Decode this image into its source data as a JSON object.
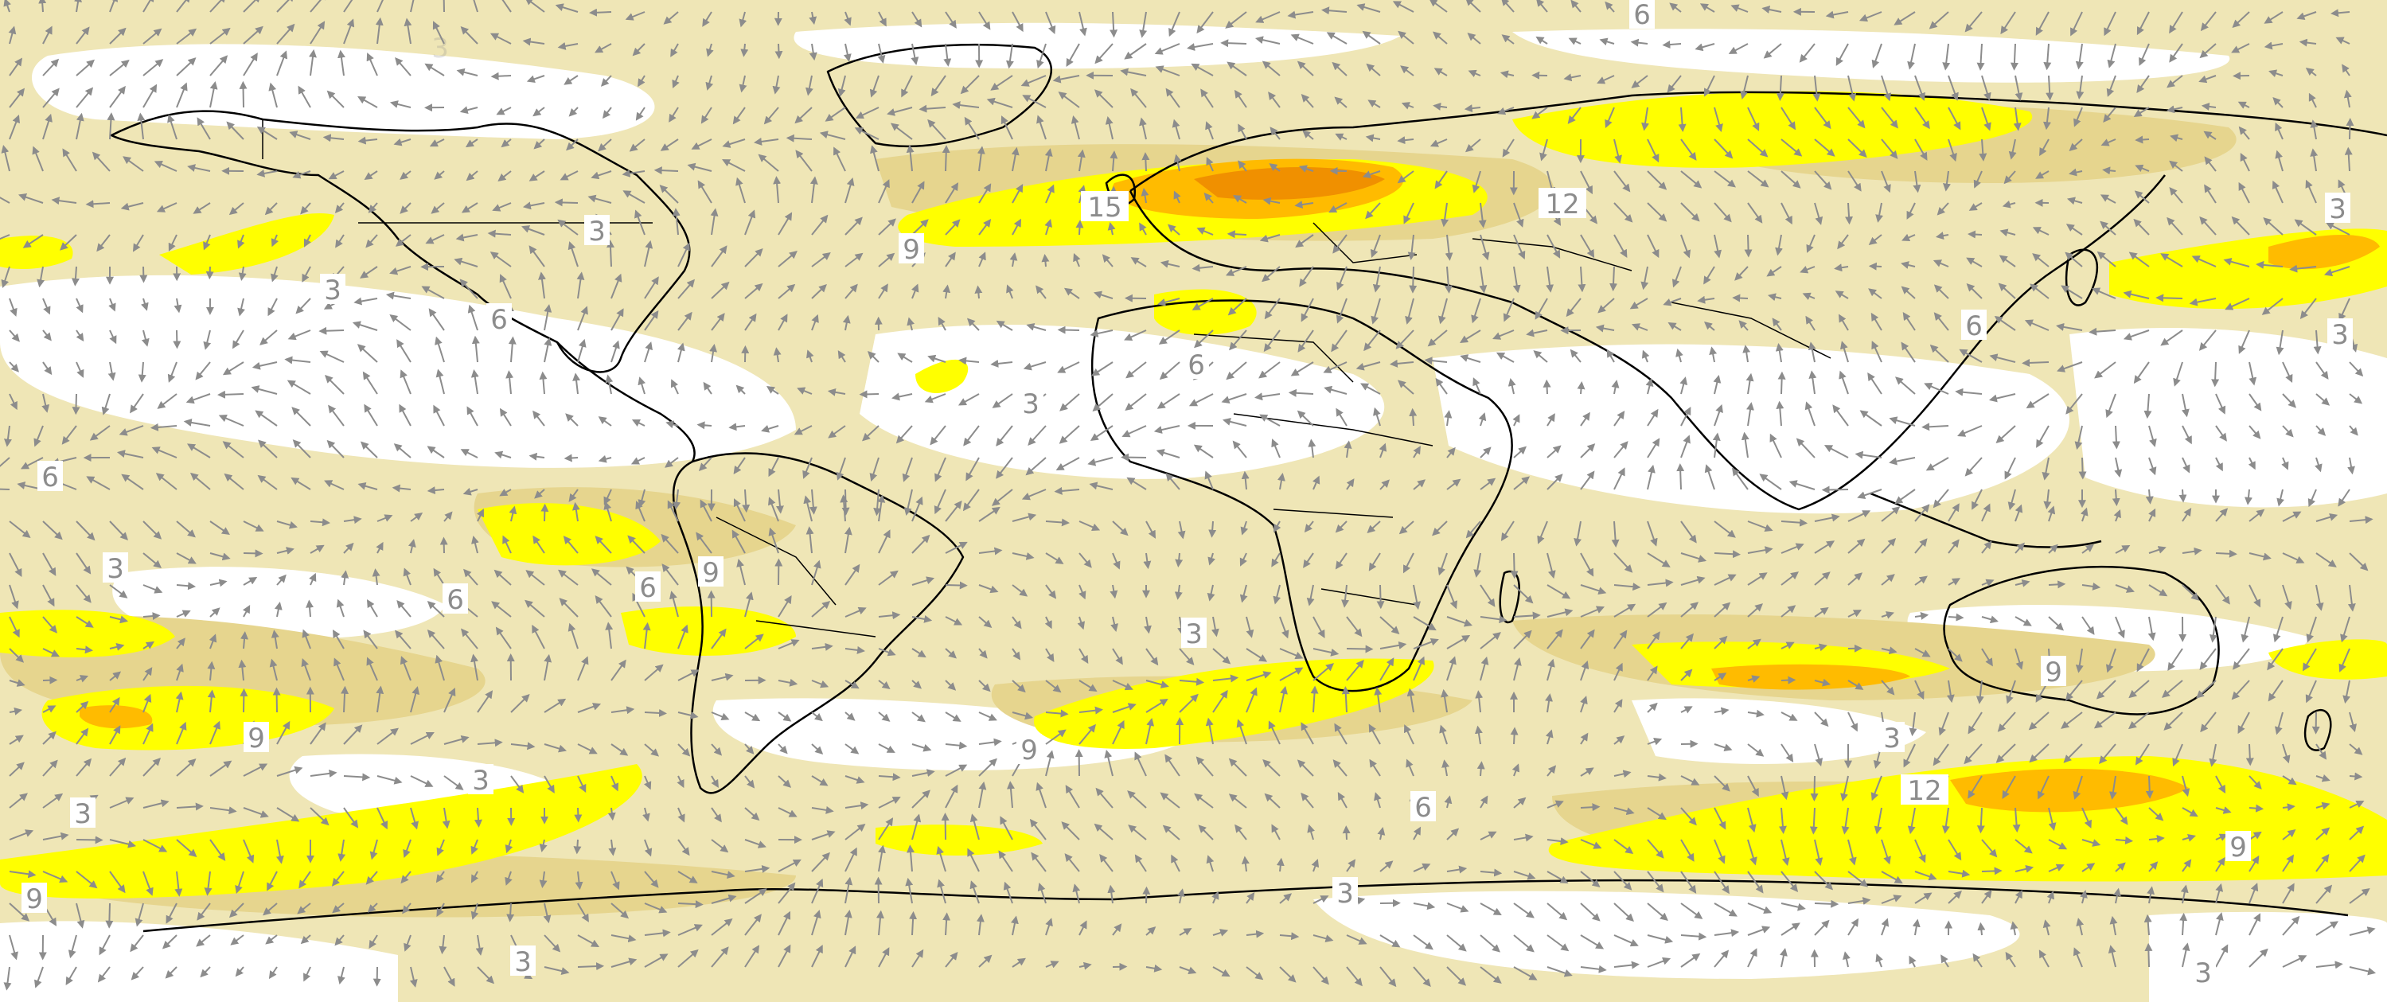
{
  "map": {
    "projection": "equirectangular",
    "coastlines": true,
    "country_borders": true,
    "vectors": {
      "color": "#8c8c8c",
      "spacing": "regular grid"
    }
  },
  "shading": {
    "levels": [
      3,
      6,
      9,
      12,
      15
    ],
    "colors": [
      "#ffffff",
      "#efe6b6",
      "#e6d58e",
      "#ffff00",
      "#ffbb00",
      "#f09000"
    ]
  },
  "contour_labels": [
    {
      "id": "l01",
      "text": "6"
    },
    {
      "id": "l02",
      "text": "3"
    },
    {
      "id": "l03",
      "text": "15"
    },
    {
      "id": "l04",
      "text": "12"
    },
    {
      "id": "l05",
      "text": "9"
    },
    {
      "id": "l06",
      "text": "3"
    },
    {
      "id": "l07",
      "text": "3"
    },
    {
      "id": "l08",
      "text": "6"
    },
    {
      "id": "l09",
      "text": "6"
    },
    {
      "id": "l10",
      "text": "3"
    },
    {
      "id": "l11",
      "text": "6"
    },
    {
      "id": "l12",
      "text": "3"
    },
    {
      "id": "l13",
      "text": "6"
    },
    {
      "id": "l14",
      "text": "3"
    },
    {
      "id": "l15",
      "text": "6"
    },
    {
      "id": "l16",
      "text": "6"
    },
    {
      "id": "l17",
      "text": "9"
    },
    {
      "id": "l18",
      "text": "3"
    },
    {
      "id": "l19",
      "text": "9"
    },
    {
      "id": "l20",
      "text": "9"
    },
    {
      "id": "l21",
      "text": "3"
    },
    {
      "id": "l22",
      "text": "3"
    },
    {
      "id": "l23",
      "text": "9"
    },
    {
      "id": "l24",
      "text": "3"
    },
    {
      "id": "l25",
      "text": "12"
    },
    {
      "id": "l26",
      "text": "6"
    },
    {
      "id": "l27",
      "text": "9"
    },
    {
      "id": "l28",
      "text": "3"
    },
    {
      "id": "l29",
      "text": "9"
    },
    {
      "id": "l30",
      "text": "3"
    },
    {
      "id": "l31",
      "text": "3"
    },
    {
      "id": "l32",
      "text": "3"
    }
  ]
}
